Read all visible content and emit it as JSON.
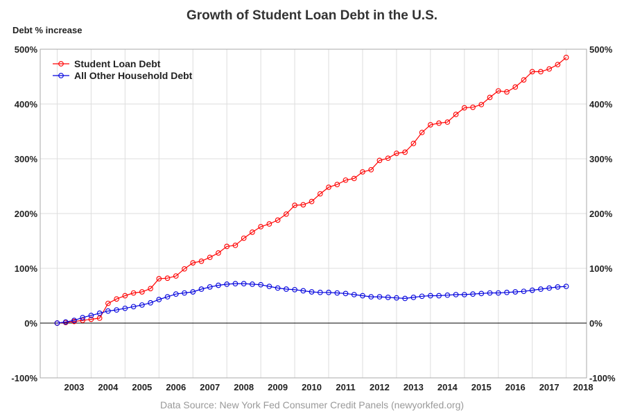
{
  "chart_data": {
    "type": "line",
    "title": "Growth of Student Loan Debt in the U.S.",
    "ylabel": "Debt % increase",
    "ylim": [
      -100,
      500
    ],
    "yticks": [
      "-100%",
      "0%",
      "100%",
      "200%",
      "300%",
      "400%",
      "500%"
    ],
    "ytick_values": [
      -100,
      0,
      100,
      200,
      300,
      400,
      500
    ],
    "xlim": [
      2002.5,
      2018.6
    ],
    "xticks": [
      "2003",
      "2004",
      "2005",
      "2006",
      "2007",
      "2008",
      "2009",
      "2010",
      "2011",
      "2012",
      "2013",
      "2014",
      "2015",
      "2016",
      "2017",
      "2018"
    ],
    "grid": true,
    "dual_y_axis": true,
    "legend_placement": "top-left",
    "source": "Data Source: New York Fed Consumer Credit Panels (newyorkfed.org)",
    "series": [
      {
        "name": "Student Loan Debt",
        "color": "#ff0000",
        "x": [
          2003.0,
          2003.25,
          2003.5,
          2003.75,
          2004.0,
          2004.25,
          2004.5,
          2004.75,
          2005.0,
          2005.25,
          2005.5,
          2005.75,
          2006.0,
          2006.25,
          2006.5,
          2006.75,
          2007.0,
          2007.25,
          2007.5,
          2007.75,
          2008.0,
          2008.25,
          2008.5,
          2008.75,
          2009.0,
          2009.25,
          2009.5,
          2009.75,
          2010.0,
          2010.25,
          2010.5,
          2010.75,
          2011.0,
          2011.25,
          2011.5,
          2011.75,
          2012.0,
          2012.25,
          2012.5,
          2012.75,
          2013.0,
          2013.25,
          2013.5,
          2013.75,
          2014.0,
          2014.25,
          2014.5,
          2014.75,
          2015.0,
          2015.25,
          2015.5,
          2015.75,
          2016.0,
          2016.25,
          2016.5,
          2016.75,
          2017.0,
          2017.25,
          2017.5,
          2017.75,
          2018.0
        ],
        "values": [
          0,
          1,
          3,
          5,
          7,
          9,
          36,
          44,
          50,
          55,
          57,
          63,
          81,
          82,
          86,
          99,
          110,
          113,
          120,
          128,
          140,
          142,
          155,
          166,
          176,
          181,
          188,
          199,
          215,
          216,
          222,
          236,
          248,
          253,
          261,
          264,
          276,
          280,
          297,
          301,
          310,
          312,
          328,
          348,
          362,
          365,
          367,
          381,
          393,
          394,
          399,
          412,
          424,
          422,
          431,
          444,
          459,
          459,
          464,
          472,
          485
        ]
      },
      {
        "name": "All Other Household Debt",
        "color": "#0000dd",
        "x": [
          2003.0,
          2003.25,
          2003.5,
          2003.75,
          2004.0,
          2004.25,
          2004.5,
          2004.75,
          2005.0,
          2005.25,
          2005.5,
          2005.75,
          2006.0,
          2006.25,
          2006.5,
          2006.75,
          2007.0,
          2007.25,
          2007.5,
          2007.75,
          2008.0,
          2008.25,
          2008.5,
          2008.75,
          2009.0,
          2009.25,
          2009.5,
          2009.75,
          2010.0,
          2010.25,
          2010.5,
          2010.75,
          2011.0,
          2011.25,
          2011.5,
          2011.75,
          2012.0,
          2012.25,
          2012.5,
          2012.75,
          2013.0,
          2013.25,
          2013.5,
          2013.75,
          2014.0,
          2014.25,
          2014.5,
          2014.75,
          2015.0,
          2015.25,
          2015.5,
          2015.75,
          2016.0,
          2016.25,
          2016.5,
          2016.75,
          2017.0,
          2017.25,
          2017.5,
          2017.75,
          2018.0
        ],
        "values": [
          0,
          2,
          5,
          10,
          14,
          18,
          22,
          24,
          27,
          30,
          33,
          37,
          43,
          48,
          53,
          55,
          57,
          62,
          66,
          69,
          71,
          72,
          72,
          71,
          70,
          67,
          64,
          62,
          61,
          59,
          57,
          56,
          56,
          55,
          54,
          52,
          50,
          48,
          48,
          47,
          46,
          45,
          47,
          49,
          50,
          50,
          51,
          52,
          52,
          53,
          54,
          55,
          55,
          56,
          57,
          58,
          60,
          62,
          64,
          66,
          67
        ]
      }
    ]
  }
}
